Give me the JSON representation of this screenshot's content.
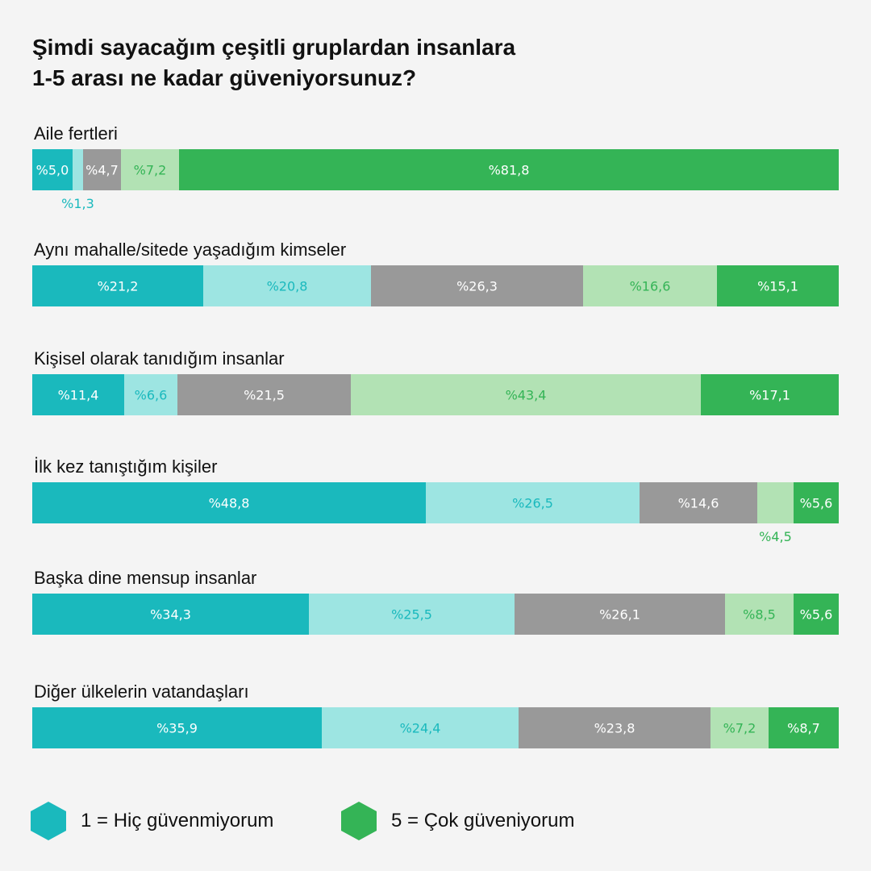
{
  "chart_data": {
    "type": "bar",
    "orientation": "horizontal",
    "stacked": true,
    "title_lines": [
      "Şimdi sayacağım çeşitli gruplardan insanlara",
      "1-5 arası ne kadar güveniyorsunuz?"
    ],
    "categories": [
      "Aile fertleri",
      "Aynı mahalle/sitede yaşadığım kimseler",
      "Kişisel olarak tanıdığım insanlar",
      "İlk kez tanıştığım kişiler",
      "Başka dine mensup insanlar",
      "Diğer ülkelerin vatandaşları"
    ],
    "series": [
      {
        "color": "#1ab9bd",
        "values": [
          5.0,
          21.2,
          11.4,
          48.8,
          34.3,
          35.9
        ],
        "labels": [
          "%5,0",
          "%21,2",
          "%11,4",
          "%48,8",
          "%34,3",
          "%35,9"
        ]
      },
      {
        "color": "#9de5e2",
        "values": [
          1.3,
          20.8,
          6.6,
          26.5,
          25.5,
          24.4
        ],
        "labels": [
          "%1,3",
          "%20,8",
          "%6,6",
          "%26,5",
          "%25,5",
          "%24,4"
        ]
      },
      {
        "color": "#999999",
        "values": [
          4.7,
          26.3,
          21.5,
          14.6,
          26.1,
          23.8
        ],
        "labels": [
          "%4,7",
          "%26,3",
          "%21,5",
          "%14,6",
          "%26,1",
          "%23,8"
        ]
      },
      {
        "color": "#b2e2b4",
        "values": [
          7.2,
          16.6,
          43.4,
          4.5,
          8.5,
          7.2
        ],
        "labels": [
          "%7,2",
          "%16,6",
          "%43,4",
          "%4,5",
          "%8,5",
          "%7,2"
        ]
      },
      {
        "color": "#34b456",
        "values": [
          81.8,
          15.1,
          17.1,
          5.6,
          5.6,
          8.7
        ],
        "labels": [
          "%81,8",
          "%15,1",
          "%17,1",
          "%5,6",
          "%5,6",
          "%8,7"
        ]
      }
    ],
    "xlim": [
      0,
      100
    ],
    "grid": false,
    "legend": {
      "placement": "bottom-left",
      "items": [
        {
          "label": "1 = Hiç güvenmiyorum",
          "color": "#1ab9bd"
        },
        {
          "label": "5 = Çok güveniyorum",
          "color": "#34b456"
        }
      ]
    }
  }
}
